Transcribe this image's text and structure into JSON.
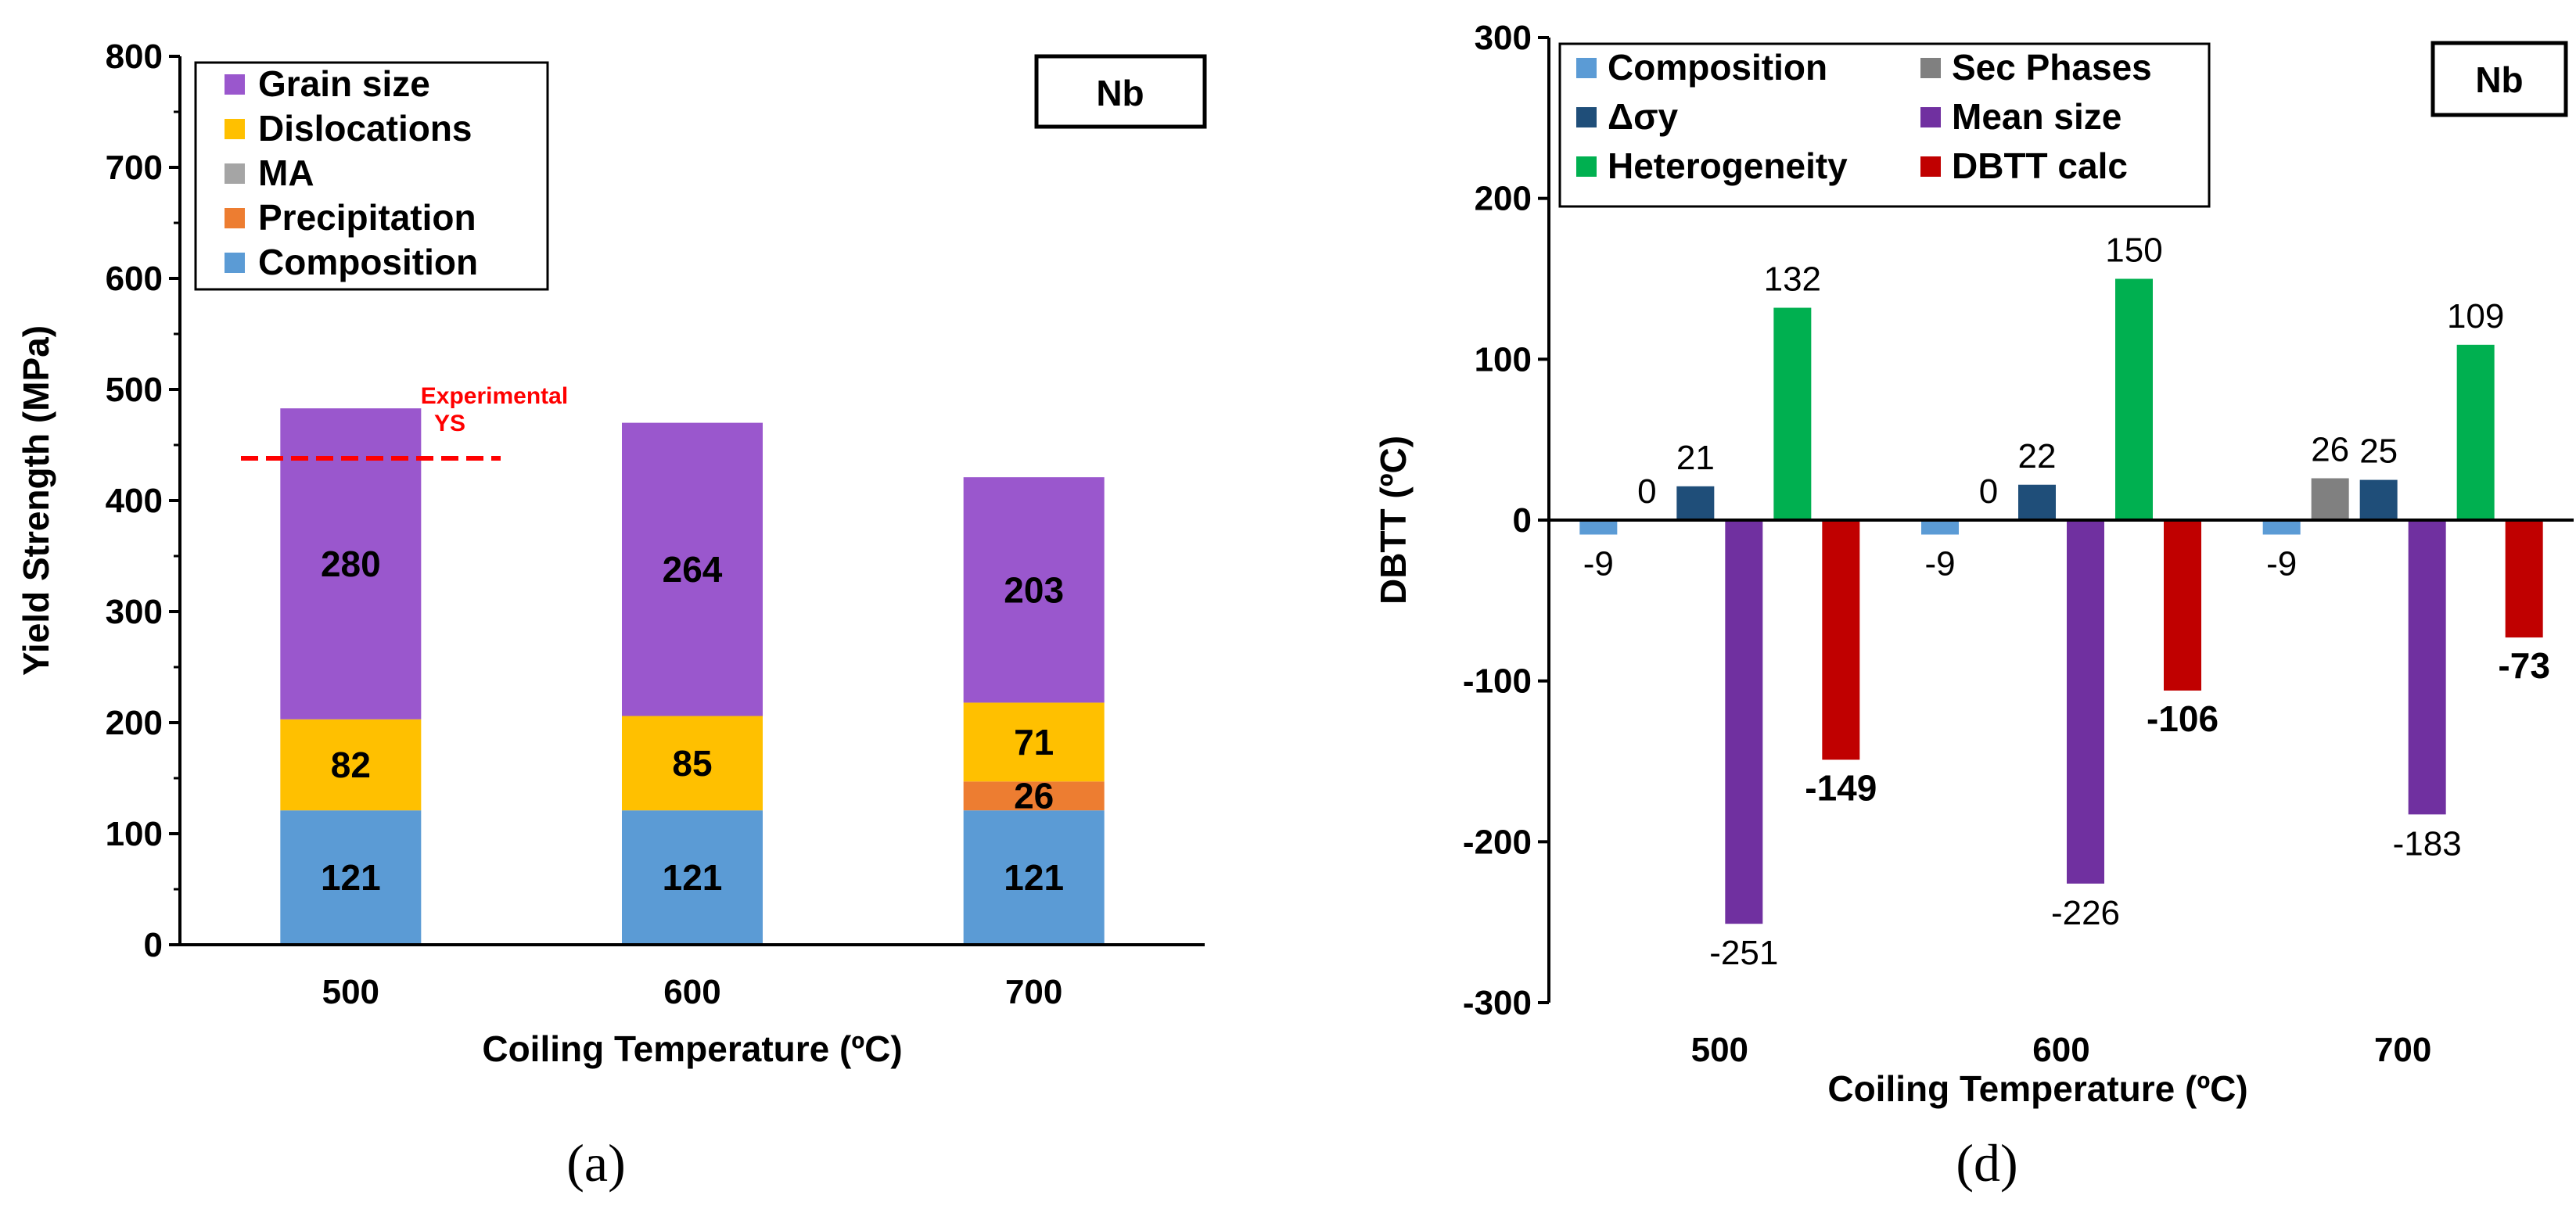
{
  "chart_data": [
    {
      "type": "bar",
      "stacked": true,
      "panel_label": "(a)",
      "tag": "Nb",
      "xlabel": "Coiling Temperature (ºC)",
      "ylabel": "Yield Strength (MPa)",
      "ylim": [
        0,
        800
      ],
      "yticks": [
        "0",
        "100",
        "200",
        "300",
        "400",
        "500",
        "600",
        "700",
        "800"
      ],
      "categories": [
        "500",
        "600",
        "700"
      ],
      "series": [
        {
          "name": "Composition",
          "color": "#5b9bd5",
          "values": [
            121,
            121,
            121
          ],
          "labels": [
            "121",
            "121",
            "121"
          ]
        },
        {
          "name": "Precipitation",
          "color": "#ed7d31",
          "values": [
            0,
            0,
            26
          ],
          "labels": [
            "",
            "",
            "26"
          ]
        },
        {
          "name": "MA",
          "color": "#a5a5a5",
          "values": [
            0,
            0,
            0
          ],
          "labels": [
            "",
            "",
            ""
          ]
        },
        {
          "name": "Dislocations",
          "color": "#ffc000",
          "values": [
            82,
            85,
            71
          ],
          "labels": [
            "82",
            "85",
            "71"
          ]
        },
        {
          "name": "Grain size",
          "color": "#9a57cd",
          "values": [
            280,
            264,
            203
          ],
          "labels": [
            "280",
            "264",
            "203"
          ]
        }
      ],
      "legend_order": [
        "Grain size",
        "Dislocations",
        "MA",
        "Precipitation",
        "Composition"
      ],
      "reference": {
        "label_line1": "Experimental",
        "label_line2": "YS",
        "value": 438,
        "color": "#ff0000"
      }
    },
    {
      "type": "bar",
      "panel_label": "(d)",
      "tag": "Nb",
      "xlabel": "Coiling Temperature (ºC)",
      "ylabel": "DBTT (ºC)",
      "ylim": [
        -300,
        300
      ],
      "yticks": [
        "-300",
        "-200",
        "-100",
        "0",
        "100",
        "200",
        "300"
      ],
      "categories": [
        "500",
        "600",
        "700"
      ],
      "series": [
        {
          "name": "Composition",
          "color": "#5b9bd5",
          "values": [
            -9,
            -9,
            -9
          ],
          "labels": [
            "-9",
            "-9",
            "-9"
          ],
          "bold": false
        },
        {
          "name": "Sec Phases",
          "color": "#808080",
          "values": [
            0,
            0,
            26
          ],
          "labels": [
            "0",
            "0",
            "26"
          ],
          "bold": false
        },
        {
          "name": "Δσy",
          "color": "#1f4e79",
          "values": [
            21,
            22,
            25
          ],
          "labels": [
            "21",
            "22",
            "25"
          ],
          "bold": false
        },
        {
          "name": "Mean size",
          "color": "#7030a0",
          "values": [
            -251,
            -226,
            -183
          ],
          "labels": [
            "-251",
            "-226",
            "-183"
          ],
          "bold": false
        },
        {
          "name": "Heterogeneity",
          "color": "#00b050",
          "values": [
            132,
            150,
            109
          ],
          "labels": [
            "132",
            "150",
            "109"
          ],
          "bold": false
        },
        {
          "name": "DBTT calc",
          "color": "#c00000",
          "values": [
            -149,
            -106,
            -73
          ],
          "labels": [
            "-149",
            "-106",
            "-73"
          ],
          "bold": true
        }
      ],
      "legend_rows": [
        [
          "Composition",
          "Sec Phases"
        ],
        [
          "Δσy",
          "Mean size"
        ],
        [
          "Heterogeneity",
          "DBTT calc"
        ]
      ]
    }
  ]
}
